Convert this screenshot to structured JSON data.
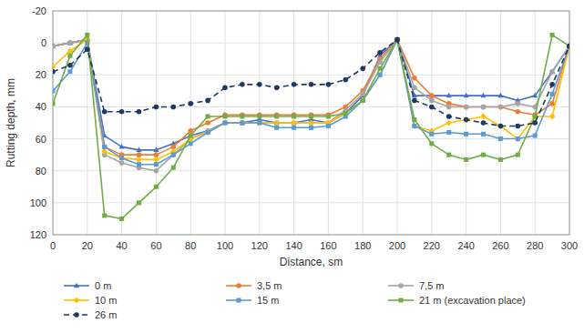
{
  "chart_data": {
    "type": "line",
    "x": [
      0,
      10,
      20,
      30,
      40,
      50,
      60,
      70,
      80,
      90,
      100,
      110,
      120,
      130,
      140,
      150,
      160,
      170,
      180,
      190,
      200,
      210,
      220,
      230,
      240,
      250,
      260,
      270,
      280,
      290,
      300
    ],
    "series": [
      {
        "name": "0 m",
        "color": "#4472C4",
        "marker": "triangle",
        "line_style": "solid",
        "values": [
          2,
          0,
          -2,
          58,
          65,
          67,
          67,
          63,
          58,
          55,
          50,
          50,
          48,
          50,
          50,
          48,
          50,
          44,
          33,
          8,
          -2,
          33,
          33,
          33,
          33,
          33,
          33,
          36,
          33,
          18,
          2
        ]
      },
      {
        "name": "3,5 m",
        "color": "#ED7D31",
        "marker": "circle",
        "line_style": "solid",
        "values": [
          2,
          0,
          -2,
          65,
          70,
          70,
          70,
          65,
          55,
          50,
          45,
          45,
          45,
          45,
          45,
          45,
          45,
          40,
          30,
          10,
          -2,
          22,
          33,
          38,
          40,
          40,
          40,
          43,
          45,
          38,
          2
        ]
      },
      {
        "name": "7,5 m",
        "color": "#A5A5A5",
        "marker": "circle",
        "line_style": "solid",
        "values": [
          2,
          0,
          -2,
          70,
          75,
          78,
          80,
          70,
          60,
          55,
          50,
          50,
          50,
          50,
          50,
          50,
          50,
          42,
          32,
          12,
          -2,
          28,
          36,
          40,
          40,
          40,
          40,
          38,
          40,
          18,
          2
        ]
      },
      {
        "name": "10 m",
        "color": "#FFC000",
        "marker": "diamond",
        "line_style": "solid",
        "values": [
          15,
          5,
          -2,
          68,
          72,
          73,
          73,
          68,
          60,
          56,
          50,
          50,
          50,
          50,
          50,
          50,
          50,
          44,
          36,
          20,
          -2,
          52,
          55,
          50,
          48,
          46,
          52,
          60,
          46,
          46,
          2
        ]
      },
      {
        "name": "15 m",
        "color": "#5B9BD5",
        "marker": "square",
        "line_style": "solid",
        "values": [
          30,
          18,
          0,
          65,
          72,
          76,
          76,
          70,
          63,
          56,
          50,
          50,
          50,
          53,
          53,
          53,
          52,
          46,
          36,
          20,
          -2,
          52,
          57,
          56,
          57,
          57,
          60,
          60,
          58,
          32,
          2
        ]
      },
      {
        "name": "21 m (excavation place)",
        "color": "#70AD47",
        "marker": "square",
        "line_style": "solid",
        "values": [
          38,
          8,
          -5,
          108,
          110,
          100,
          90,
          78,
          58,
          46,
          46,
          46,
          46,
          46,
          46,
          46,
          46,
          44,
          36,
          16,
          -2,
          48,
          63,
          70,
          73,
          70,
          73,
          70,
          46,
          -5,
          2
        ]
      },
      {
        "name": "26 m",
        "color": "#1F3864",
        "marker": "circle",
        "line_style": "dashed",
        "values": [
          18,
          14,
          4,
          43,
          43,
          43,
          40,
          40,
          38,
          36,
          28,
          26,
          26,
          28,
          26,
          26,
          26,
          23,
          16,
          6,
          -2,
          36,
          40,
          46,
          48,
          50,
          52,
          52,
          50,
          26,
          2
        ]
      }
    ],
    "xlabel": "Distance, sm",
    "ylabel": "Rutting depth, mm",
    "xlim": [
      0,
      300
    ],
    "ylim": [
      120,
      -20
    ],
    "xticks": [
      0,
      20,
      40,
      60,
      80,
      100,
      120,
      140,
      160,
      180,
      200,
      220,
      240,
      260,
      280,
      300
    ],
    "yticks": [
      -20,
      0,
      20,
      40,
      60,
      80,
      100,
      120
    ],
    "grid": true,
    "legend": "bottom"
  }
}
